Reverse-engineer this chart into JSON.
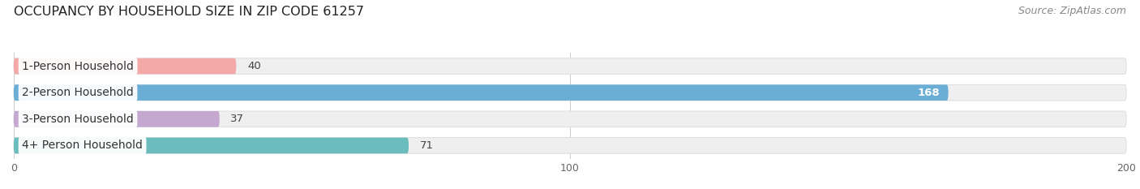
{
  "title": "OCCUPANCY BY HOUSEHOLD SIZE IN ZIP CODE 61257",
  "source": "Source: ZipAtlas.com",
  "categories": [
    "1-Person Household",
    "2-Person Household",
    "3-Person Household",
    "4+ Person Household"
  ],
  "values": [
    40,
    168,
    37,
    71
  ],
  "bar_colors": [
    "#f4a8a8",
    "#6aaed6",
    "#c4a8d0",
    "#6bbcbc"
  ],
  "label_colors": [
    "#444444",
    "#ffffff",
    "#444444",
    "#444444"
  ],
  "bar_bg_color": "#efefef",
  "bar_bg_edge_color": "#dddddd",
  "xlim": [
    0,
    200
  ],
  "xticks": [
    0,
    100,
    200
  ],
  "background_color": "#ffffff",
  "bar_height": 0.6,
  "title_fontsize": 11.5,
  "source_fontsize": 9,
  "label_fontsize": 10,
  "value_fontsize": 9.5,
  "rounding_size": 10
}
